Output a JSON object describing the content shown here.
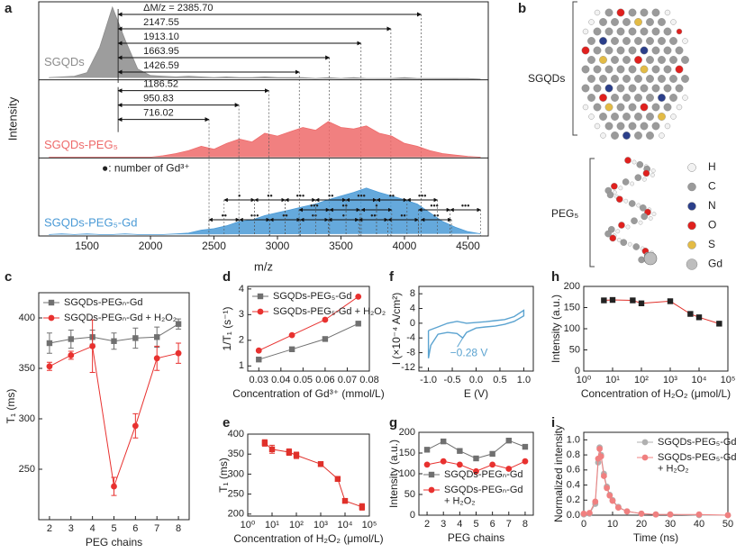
{
  "chart_data": [
    {
      "panel": "a",
      "type": "spectrum",
      "xlabel": "m/z",
      "ylabel": "Intensity",
      "xlim": [
        1120,
        4660
      ],
      "xticks": [
        1500,
        2000,
        2500,
        3000,
        3500,
        4000,
        4500
      ],
      "ylim": [
        0,
        1
      ],
      "annotation": "●: number of Gd³⁺",
      "x": [
        1200,
        1300,
        1400,
        1500,
        1600,
        1700,
        1800,
        1900,
        2000,
        2100,
        2200,
        2300,
        2400,
        2500,
        2600,
        2700,
        2800,
        2900,
        3000,
        3100,
        3200,
        3300,
        3400,
        3500,
        3600,
        3700,
        3800,
        3900,
        4000,
        4100,
        4200,
        4300,
        4400,
        4500,
        4600
      ],
      "series": [
        {
          "name": "SGQDs",
          "color": "#8c8c8c",
          "values": [
            0.03,
            0.04,
            0.05,
            0.1,
            0.45,
            1.0,
            0.55,
            0.15,
            0.06,
            0.05,
            0.04,
            0.05,
            0.04,
            0.03,
            0.04,
            0.03,
            0.03,
            0.04,
            0.03,
            0.03,
            0.03,
            0.02,
            0.03,
            0.02,
            0.03,
            0.02,
            0.02,
            0.02,
            0.03,
            0.02,
            0.02,
            0.02,
            0.02,
            0.02,
            0.01
          ],
          "arrows": [
            {
              "from": 1745,
              "to": 4131,
              "label": "ΔM/z = 2385.70"
            },
            {
              "from": 1745,
              "to": 3893,
              "label": "2147.55"
            },
            {
              "from": 1745,
              "to": 3658,
              "label": "1913.10"
            },
            {
              "from": 1745,
              "to": 3409,
              "label": "1663.95"
            },
            {
              "from": 1745,
              "to": 3172,
              "label": "1426.59"
            }
          ]
        },
        {
          "name": "SGQDs-PEG₅",
          "color": "#ee6a6a",
          "values": [
            0.01,
            0.01,
            0.01,
            0.01,
            0.01,
            0.01,
            0.01,
            0.01,
            0.01,
            0.03,
            0.06,
            0.1,
            0.16,
            0.12,
            0.2,
            0.26,
            0.22,
            0.34,
            0.3,
            0.36,
            0.42,
            0.38,
            0.5,
            0.42,
            0.4,
            0.44,
            0.34,
            0.3,
            0.2,
            0.16,
            0.1,
            0.06,
            0.04,
            0.02,
            0.01
          ],
          "arrows": [
            {
              "from": 1745,
              "to": 2932,
              "label": "1186.52"
            },
            {
              "from": 1745,
              "to": 2696,
              "label": "950.83"
            },
            {
              "from": 1745,
              "to": 2461,
              "label": "716.02"
            }
          ]
        },
        {
          "name": "SGQDs-PEG₅-Gd",
          "color": "#4a9ad6",
          "values": [
            0.02,
            0.03,
            0.02,
            0.03,
            0.02,
            0.02,
            0.03,
            0.02,
            0.02,
            0.02,
            0.03,
            0.04,
            0.08,
            0.1,
            0.14,
            0.2,
            0.22,
            0.28,
            0.32,
            0.36,
            0.4,
            0.44,
            0.5,
            0.55,
            0.6,
            0.66,
            0.6,
            0.55,
            0.5,
            0.44,
            0.32,
            0.2,
            0.12,
            0.06,
            0.03
          ],
          "arrows": [
            {
              "from": 2460,
              "to": 2700,
              "label": "••"
            },
            {
              "from": 2700,
              "to": 2940,
              "label": "•••"
            },
            {
              "from": 2940,
              "to": 3180,
              "label": "••"
            },
            {
              "from": 3170,
              "to": 3410,
              "label": "•••"
            },
            {
              "from": 3180,
              "to": 3400,
              "label": "••"
            },
            {
              "from": 3400,
              "to": 3640,
              "label": "•"
            },
            {
              "from": 3410,
              "to": 3650,
              "label": "••"
            },
            {
              "from": 3640,
              "to": 3870,
              "label": "••"
            },
            {
              "from": 3660,
              "to": 3900,
              "label": "•"
            },
            {
              "from": 3870,
              "to": 4110,
              "label": "••"
            },
            {
              "from": 4130,
              "to": 4370,
              "label": "••"
            },
            {
              "from": 4110,
              "to": 4360,
              "label": "•••"
            },
            {
              "from": 4360,
              "to": 4600,
              "label": "•••"
            },
            {
              "from": 2580,
              "to": 2820,
              "label": "•"
            },
            {
              "from": 2820,
              "to": 3060,
              "label": "••"
            },
            {
              "from": 3060,
              "to": 3300,
              "label": "•••"
            },
            {
              "from": 3300,
              "to": 3540,
              "label": "••"
            },
            {
              "from": 3540,
              "to": 3780,
              "label": "•••"
            },
            {
              "from": 3780,
              "to": 4020,
              "label": "••"
            },
            {
              "from": 4020,
              "to": 4260,
              "label": "•••"
            }
          ]
        }
      ]
    },
    {
      "panel": "c",
      "type": "line",
      "xlabel": "PEG chains",
      "ylabel": "T₁ (ms)",
      "xlim": [
        1.5,
        8.5
      ],
      "xticks": [
        2,
        3,
        4,
        5,
        6,
        7,
        8
      ],
      "ylim": [
        200,
        425
      ],
      "yticks": [
        250,
        300,
        350,
        400
      ],
      "legend": "upper left",
      "x": [
        2,
        3,
        4,
        5,
        6,
        7,
        8
      ],
      "series": [
        {
          "name": "SGQDs-PEGₙ-Gd",
          "color": "#707070",
          "marker": "square",
          "values": [
            375,
            379,
            381,
            377,
            380,
            381,
            394
          ],
          "errors": [
            10,
            9,
            7,
            8,
            10,
            10,
            5
          ]
        },
        {
          "name": "SGQDs-PEGₙ-Gd + H₂O₂",
          "color": "#e8312f",
          "marker": "circle",
          "values": [
            352,
            363,
            372,
            233,
            293,
            360,
            365
          ],
          "errors": [
            4,
            4,
            26,
            9,
            12,
            12,
            10
          ]
        }
      ]
    },
    {
      "panel": "d",
      "type": "line",
      "xlabel": "Concentration of Gd³⁺ (mmol/L)",
      "ylabel": "1/T₁ (s⁻¹)",
      "xlim": [
        0.025,
        0.08
      ],
      "xticks": [
        0.03,
        0.04,
        0.05,
        0.06,
        0.07,
        0.08
      ],
      "ylim": [
        0.8,
        4.1
      ],
      "yticks": [
        1,
        2,
        3,
        4
      ],
      "legend": "upper left",
      "x": [
        0.03,
        0.045,
        0.06,
        0.075
      ],
      "series": [
        {
          "name": "SGQDs-PEG₅-Gd",
          "color": "#707070",
          "marker": "square",
          "values": [
            1.25,
            1.65,
            2.05,
            2.65
          ]
        },
        {
          "name": "SGQDs-PEG₅-Gd + H₂O₂",
          "color": "#e8312f",
          "marker": "circle",
          "values": [
            1.6,
            2.2,
            2.8,
            3.7
          ]
        }
      ]
    },
    {
      "panel": "e",
      "type": "line",
      "xscale": "log",
      "xlabel": "Concentration of H₂O₂ (μmol/L)",
      "ylabel": "T₁ (ms)",
      "xlim": [
        1,
        100000
      ],
      "xticks": [
        {
          "value": 1,
          "label": "10⁰"
        },
        {
          "value": 10,
          "label": "10¹"
        },
        {
          "value": 100,
          "label": "10²"
        },
        {
          "value": 1000,
          "label": "10³"
        },
        {
          "value": 10000,
          "label": "10⁴"
        },
        {
          "value": 100000,
          "label": "10⁵"
        }
      ],
      "ylim": [
        195,
        400
      ],
      "yticks": [
        200,
        250,
        300,
        350,
        400
      ],
      "x": [
        5,
        10,
        50,
        100,
        1000,
        5000,
        10000,
        50000
      ],
      "series": [
        {
          "color": "#e0302a",
          "marker": "square",
          "values": [
            378,
            362,
            355,
            347,
            325,
            288,
            233,
            218
          ],
          "errors": [
            8,
            10,
            8,
            8,
            6,
            6,
            5,
            8
          ]
        }
      ]
    },
    {
      "panel": "f",
      "type": "line",
      "xlabel": "E (V)",
      "ylabel": "I (×10⁻⁴ A/cm²)",
      "xlim": [
        -1.2,
        1.2
      ],
      "xticks": [
        {
          "value": -1,
          "label": "-1.0"
        },
        -0.5,
        {
          "value": 0,
          "label": "0.0"
        },
        0.5,
        {
          "value": 1,
          "label": "1.0"
        }
      ],
      "ylim": [
        -13,
        10
      ],
      "yticks": [
        -12,
        -8,
        -4,
        0,
        4,
        8
      ],
      "annotations": [
        {
          "text": "−0.28 V",
          "x": -0.28,
          "y": -4
        }
      ],
      "x": [
        -1.0,
        -0.8,
        -0.6,
        -0.4,
        -0.2,
        0,
        0.2,
        0.4,
        0.6,
        0.8,
        1.0,
        1.0,
        0.8,
        0.6,
        0.4,
        0.2,
        0,
        -0.2,
        -0.28,
        -0.4,
        -0.6,
        -0.8,
        -0.95,
        -1.0,
        -1.0
      ],
      "series": [
        {
          "color": "#5ba3d0",
          "values": [
            -2,
            -1,
            0,
            0.5,
            0,
            0.2,
            0.4,
            0.7,
            1,
            1.8,
            3.5,
            2,
            0.5,
            -0.3,
            -0.8,
            -1,
            -1.3,
            -2.5,
            -4,
            -2.8,
            -2.5,
            -3,
            -6,
            -9.5,
            -2
          ]
        }
      ]
    },
    {
      "panel": "g",
      "type": "line",
      "xlabel": "PEG chains",
      "ylabel": "Intensity (a.u.)",
      "xlim": [
        1.5,
        8.5
      ],
      "xticks": [
        2,
        3,
        4,
        5,
        6,
        7,
        8
      ],
      "ylim": [
        0,
        200
      ],
      "yticks": [
        0,
        50,
        100,
        150,
        200
      ],
      "legend": "lower left",
      "x": [
        2,
        3,
        4,
        5,
        6,
        7,
        8
      ],
      "series": [
        {
          "name": "SGQDs-PEGₙ-Gd",
          "color": "#707070",
          "marker": "square",
          "values": [
            158,
            178,
            155,
            137,
            148,
            180,
            165
          ]
        },
        {
          "name": "SGQDs-PEGₙ-Gd\n+ H₂O₂",
          "color": "#e8312f",
          "marker": "circle",
          "values": [
            122,
            130,
            122,
            106,
            122,
            112,
            130
          ]
        }
      ]
    },
    {
      "panel": "h",
      "type": "line",
      "xscale": "log",
      "xlabel": "Concentration of H₂O₂ (μmol/L)",
      "ylabel": "Intensity (a.u.)",
      "xlim": [
        1,
        100000
      ],
      "xticks": [
        {
          "value": 1,
          "label": "10⁰"
        },
        {
          "value": 10,
          "label": "10¹"
        },
        {
          "value": 100,
          "label": "10²"
        },
        {
          "value": 1000,
          "label": "10³"
        },
        {
          "value": 10000,
          "label": "10⁴"
        },
        {
          "value": 100000,
          "label": "10⁵"
        }
      ],
      "ylim": [
        0,
        200
      ],
      "yticks": [
        0,
        50,
        100,
        150,
        200
      ],
      "x": [
        5,
        10,
        50,
        100,
        1000,
        5000,
        10000,
        50000
      ],
      "series": [
        {
          "color": "#222222",
          "line_color": "#e0302a",
          "marker": "square",
          "values": [
            167,
            168,
            167,
            160,
            165,
            135,
            127,
            112
          ]
        }
      ]
    },
    {
      "panel": "i",
      "type": "line",
      "xlabel": "Time (ns)",
      "ylabel": "Normalized intensity",
      "xlim": [
        0,
        50
      ],
      "xticks": [
        0,
        10,
        20,
        30,
        40,
        50
      ],
      "ylim": [
        0,
        1.1
      ],
      "yticks": [
        {
          "value": 0,
          "label": "0.0"
        },
        0.2,
        0.4,
        0.6,
        0.8,
        {
          "value": 1,
          "label": "1.0"
        }
      ],
      "legend": "upper right",
      "x": [
        0,
        2,
        4,
        5,
        5.5,
        6,
        7,
        8,
        9,
        10,
        12,
        15,
        20,
        25,
        30,
        40,
        50
      ],
      "series": [
        {
          "name": "SGQDs-PEG₅-Gd",
          "color": "#b0b0b0",
          "marker": "circle",
          "values": [
            0.01,
            0.02,
            0.15,
            0.7,
            0.9,
            0.8,
            0.55,
            0.38,
            0.27,
            0.2,
            0.11,
            0.05,
            0.02,
            0.01,
            0.01,
            0,
            0
          ]
        },
        {
          "name": "SGQDs-PEG₅-Gd\n+ H₂O₂",
          "color": "#f08080",
          "marker": "circle",
          "values": [
            0.02,
            0.03,
            0.18,
            0.75,
            0.88,
            0.78,
            0.52,
            0.36,
            0.26,
            0.19,
            0.1,
            0.05,
            0.02,
            0.01,
            0.01,
            0.01,
            0
          ]
        }
      ]
    }
  ],
  "figure_b": {
    "panel": "b",
    "labels": [
      "SGQDs",
      "PEG₅"
    ],
    "legend": [
      {
        "name": "H",
        "color": "#f2f2f2"
      },
      {
        "name": "C",
        "color": "#9a9a9a"
      },
      {
        "name": "N",
        "color": "#2b3f8a"
      },
      {
        "name": "O",
        "color": "#e0201e"
      },
      {
        "name": "S",
        "color": "#e3bb45"
      },
      {
        "name": "Gd",
        "color": "#bdbdbd"
      }
    ]
  }
}
